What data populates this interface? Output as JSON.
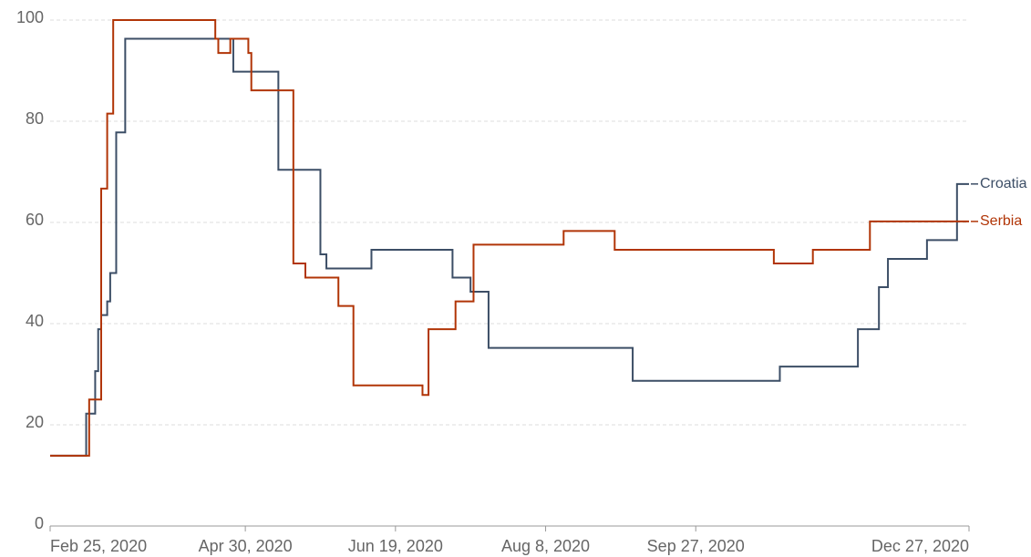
{
  "chart_data": {
    "type": "line",
    "step": true,
    "grid": true,
    "xlim": [
      "2020-02-25",
      "2020-12-27"
    ],
    "xticks": [
      {
        "value": "2020-02-25",
        "label": "Feb 25, 2020"
      },
      {
        "value": "2020-04-30",
        "label": "Apr 30, 2020"
      },
      {
        "value": "2020-06-19",
        "label": "Jun 19, 2020"
      },
      {
        "value": "2020-08-08",
        "label": "Aug 8, 2020"
      },
      {
        "value": "2020-09-27",
        "label": "Sep 27, 2020"
      },
      {
        "value": "2020-12-27",
        "label": "Dec 27, 2020"
      }
    ],
    "ylim": [
      0,
      100
    ],
    "yticks": [
      0,
      20,
      40,
      60,
      80,
      100
    ],
    "series": [
      {
        "name": "Croatia",
        "color": "#3c4e66",
        "x": [
          "2020-02-25",
          "2020-03-08",
          "2020-03-11",
          "2020-03-12",
          "2020-03-13",
          "2020-03-15",
          "2020-03-16",
          "2020-03-18",
          "2020-03-21",
          "2020-04-26",
          "2020-05-11",
          "2020-05-25",
          "2020-05-27",
          "2020-06-11",
          "2020-07-08",
          "2020-07-14",
          "2020-07-20",
          "2020-09-06",
          "2020-10-25",
          "2020-11-20",
          "2020-11-27",
          "2020-11-30",
          "2020-12-13",
          "2020-12-23",
          "2020-12-27"
        ],
        "values": [
          13.9,
          22.2,
          30.6,
          38.9,
          41.7,
          44.4,
          50,
          77.8,
          96.3,
          89.8,
          70.4,
          53.7,
          50.9,
          54.6,
          49.1,
          46.3,
          35.2,
          28.7,
          31.5,
          38.9,
          47.2,
          52.8,
          56.5,
          67.6,
          67.6
        ]
      },
      {
        "name": "Serbia",
        "color": "#b13507",
        "x": [
          "2020-02-25",
          "2020-03-09",
          "2020-03-13",
          "2020-03-15",
          "2020-03-17",
          "2020-04-20",
          "2020-04-21",
          "2020-04-25",
          "2020-05-01",
          "2020-05-02",
          "2020-05-16",
          "2020-05-20",
          "2020-05-31",
          "2020-06-05",
          "2020-06-28",
          "2020-06-30",
          "2020-07-09",
          "2020-07-15",
          "2020-08-14",
          "2020-08-31",
          "2020-10-23",
          "2020-11-05",
          "2020-11-24",
          "2020-12-27"
        ],
        "values": [
          13.9,
          25,
          66.7,
          81.5,
          100,
          96.3,
          93.5,
          96.3,
          93.5,
          86.1,
          51.9,
          49.1,
          43.5,
          27.8,
          25.9,
          38.9,
          44.4,
          55.6,
          58.3,
          54.6,
          51.9,
          54.6,
          60.2,
          60.2
        ]
      }
    ]
  }
}
